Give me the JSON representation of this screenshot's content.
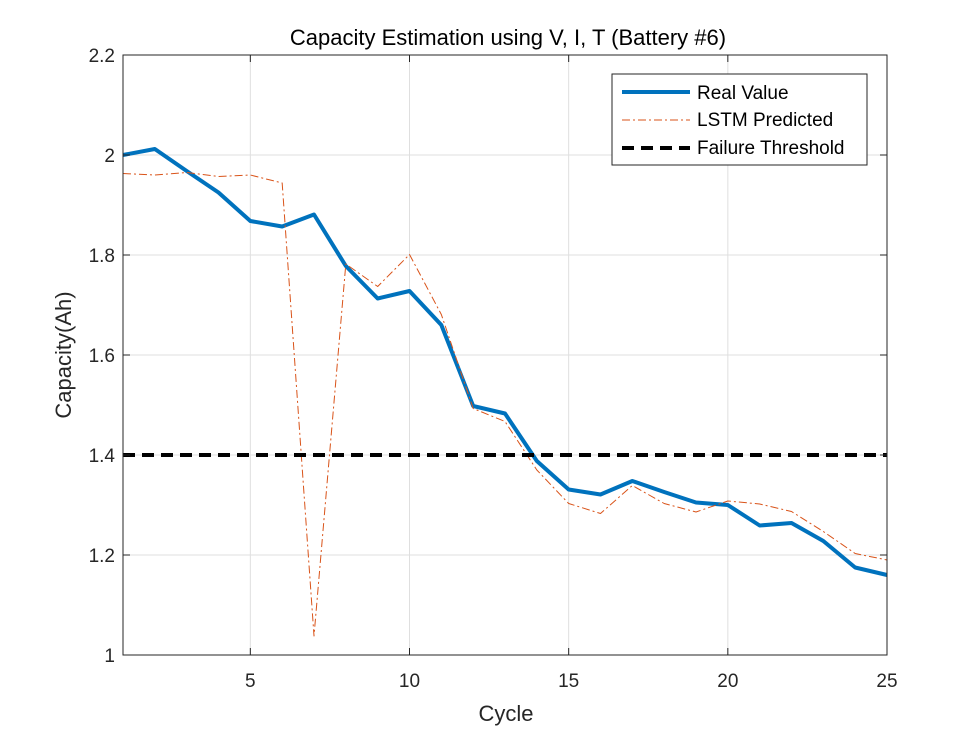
{
  "chart_data": {
    "type": "line",
    "title": "Capacity Estimation using V, I, T (Battery #6)",
    "xlabel": "Cycle",
    "ylabel": "Capacity(Ah)",
    "xlim": [
      1,
      25
    ],
    "ylim": [
      1,
      2.2
    ],
    "xticks": [
      5,
      10,
      15,
      20,
      25
    ],
    "yticks": [
      1,
      1.2,
      1.4,
      1.6,
      1.8,
      2,
      2.2
    ],
    "ytick_labels": [
      "1",
      "1.2",
      "1.4",
      "1.6",
      "1.8",
      "2",
      "2.2"
    ],
    "grid": true,
    "legend_position": "top-right",
    "x": [
      1,
      2,
      3,
      4,
      5,
      6,
      7,
      8,
      9,
      10,
      11,
      12,
      13,
      14,
      15,
      16,
      17,
      18,
      19,
      20,
      21,
      22,
      23,
      24,
      25
    ],
    "series": [
      {
        "name": "Real Value",
        "color": "#0072BD",
        "style": "solid",
        "values": [
          2.0,
          2.012,
          1.968,
          1.925,
          1.868,
          1.857,
          1.881,
          1.778,
          1.713,
          1.728,
          1.66,
          1.498,
          1.483,
          1.388,
          1.331,
          1.321,
          1.348,
          1.326,
          1.305,
          1.3,
          1.259,
          1.264,
          1.228,
          1.175,
          1.16
        ]
      },
      {
        "name": "LSTM Predicted",
        "color": "#D95319",
        "style": "dashdot",
        "values": [
          1.963,
          1.96,
          1.965,
          1.957,
          1.96,
          1.944,
          1.038,
          1.782,
          1.737,
          1.801,
          1.681,
          1.493,
          1.467,
          1.37,
          1.303,
          1.283,
          1.339,
          1.303,
          1.286,
          1.308,
          1.302,
          1.287,
          1.247,
          1.203,
          1.19
        ]
      },
      {
        "name": "Failure Threshold",
        "color": "#000000",
        "style": "dashed",
        "values": [
          1.4,
          1.4,
          1.4,
          1.4,
          1.4,
          1.4,
          1.4,
          1.4,
          1.4,
          1.4,
          1.4,
          1.4,
          1.4,
          1.4,
          1.4,
          1.4,
          1.4,
          1.4,
          1.4,
          1.4,
          1.4,
          1.4,
          1.4,
          1.4,
          1.4
        ]
      }
    ]
  }
}
